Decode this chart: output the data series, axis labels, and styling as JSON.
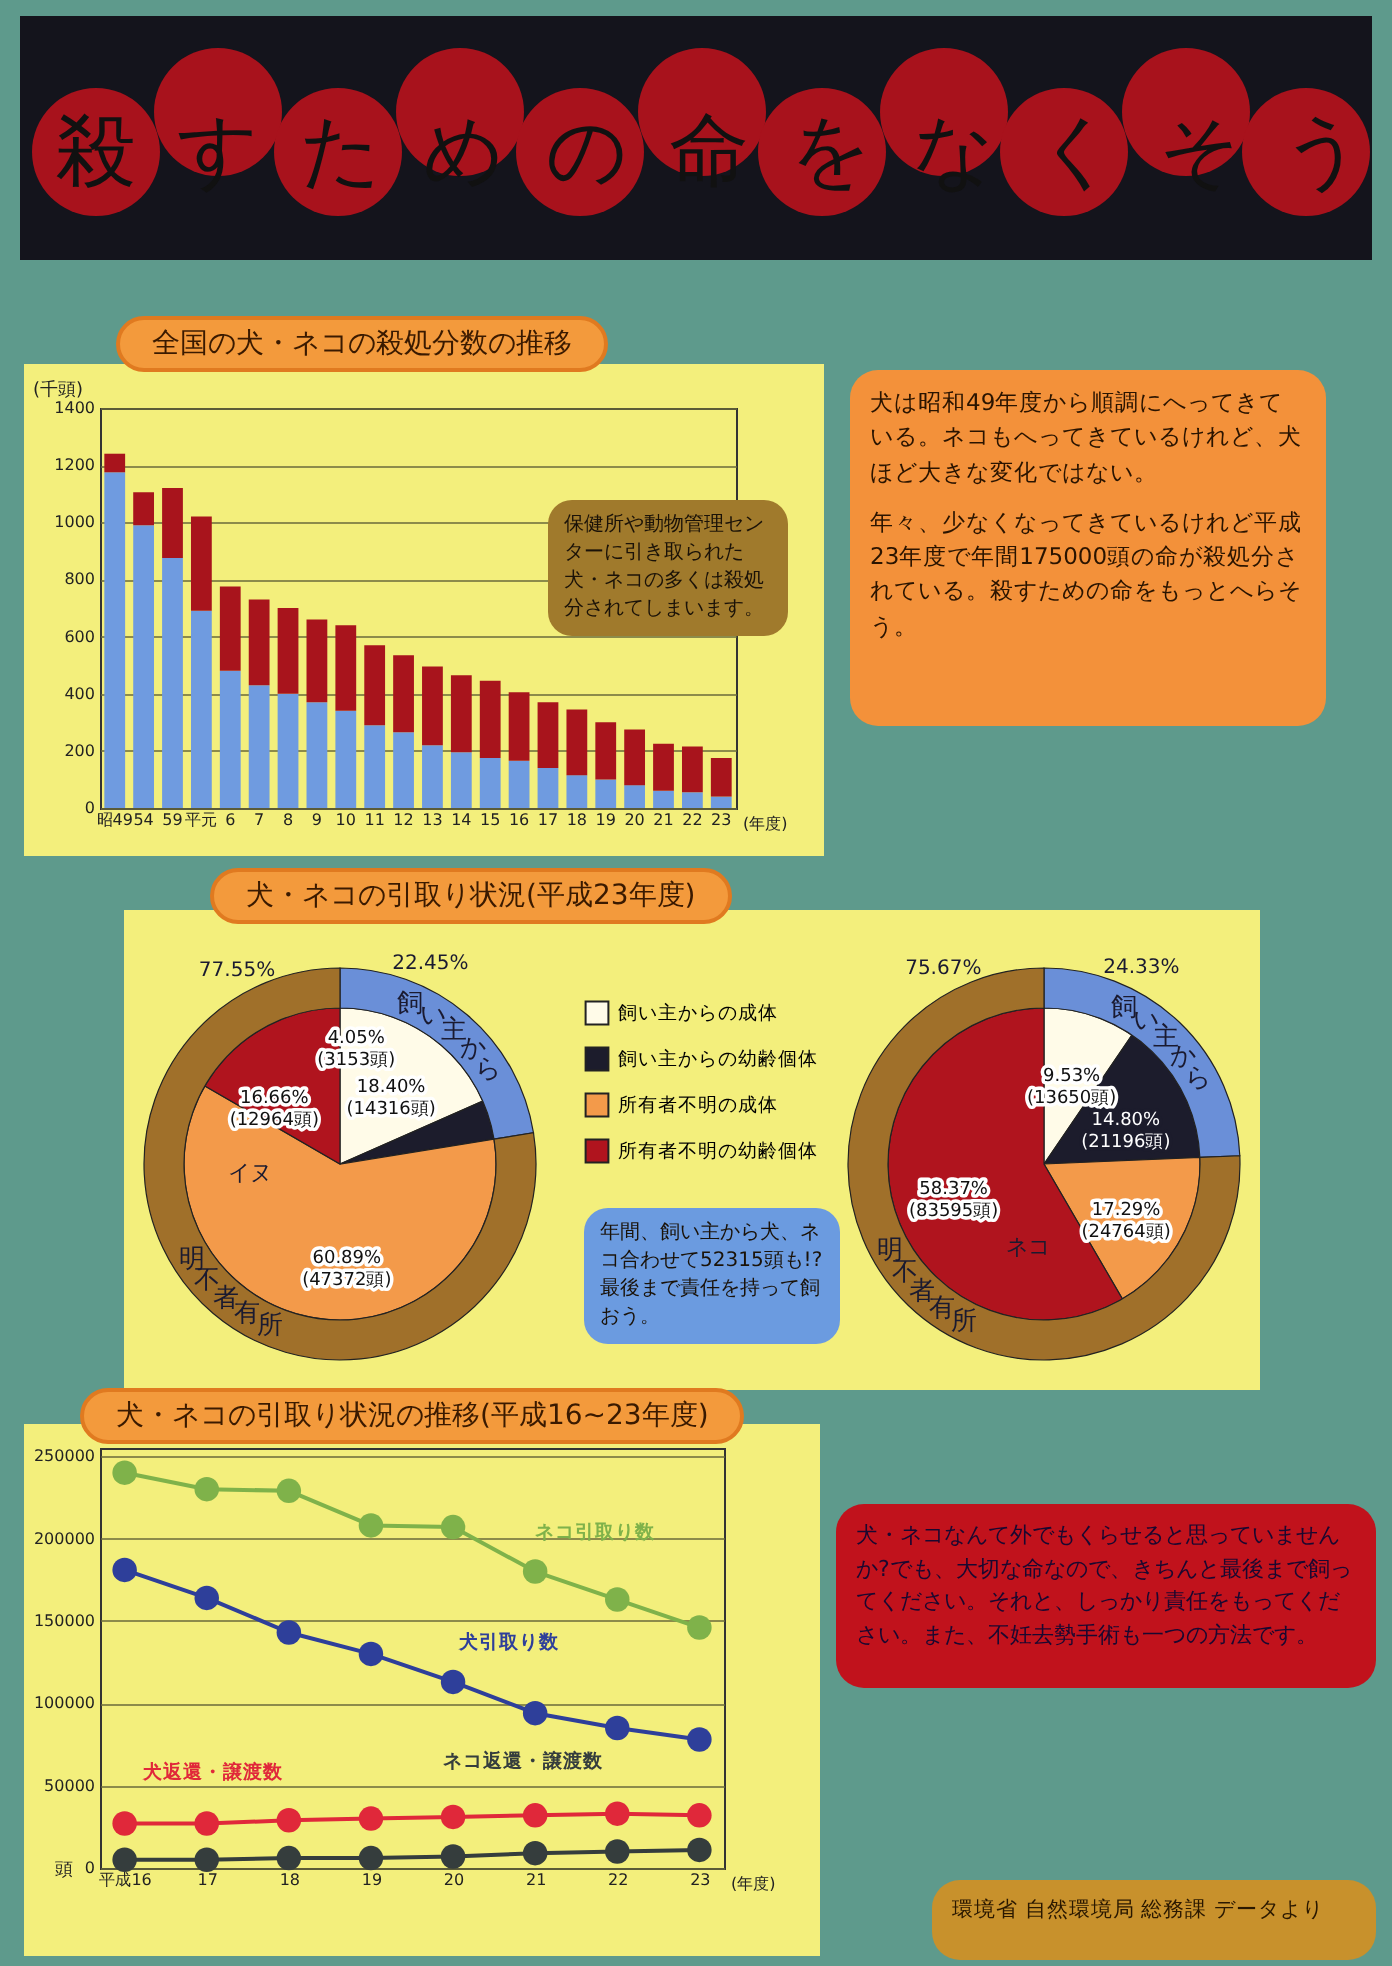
{
  "chart_data": [
    {
      "type": "other",
      "title": "殺すための命をなくそう"
    },
    {
      "type": "bar",
      "title": "全国の犬・ネコの殺処分数の推移",
      "xlabel": "(年度)",
      "ylabel": "(千頭)",
      "stacked": true,
      "grid": "y",
      "categories": [
        "昭49",
        "54",
        "59",
        "平元",
        "6",
        "7",
        "8",
        "9",
        "10",
        "11",
        "12",
        "13",
        "14",
        "15",
        "16",
        "17",
        "18",
        "19",
        "20",
        "21",
        "22",
        "23"
      ],
      "series": [
        {
          "color": "#6f9be0",
          "values": [
            1175,
            990,
            875,
            690,
            480,
            430,
            400,
            370,
            340,
            290,
            265,
            220,
            195,
            175,
            165,
            140,
            115,
            100,
            80,
            60,
            55,
            40
          ]
        },
        {
          "color": "#a8141c",
          "values": [
            65,
            115,
            245,
            330,
            295,
            300,
            300,
            290,
            300,
            280,
            270,
            275,
            270,
            270,
            240,
            230,
            230,
            200,
            195,
            165,
            160,
            135
          ]
        }
      ],
      "ylim": [
        0,
        1400
      ],
      "yticks": [
        0,
        200,
        400,
        600,
        800,
        1000,
        1200,
        1400
      ],
      "annotations": [
        "保健所や動物管理センターに引き取られた犬・ネコの多くは殺処分されてしまいます。"
      ]
    },
    {
      "type": "other",
      "annotations": [
        "犬は昭和49年度から順調にへってきている。ネコもへってきているけれど、犬ほど大きな変化ではない。",
        "年々、少なくなってきているけれど平成23年度で年間175000頭の命が殺処分されている。殺すための命をもっとへらそう。"
      ]
    },
    {
      "type": "pie",
      "title": "犬・ネコの引取り状況(平成23年度)",
      "legend": "right",
      "categories": [
        "飼い主からの成体",
        "飼い主からの幼齢個体",
        "所有者不明の成体",
        "所有者不明の幼齢個体"
      ],
      "values": [
        14316,
        3153,
        47372,
        12964
      ],
      "colors": [
        "#fffbe8",
        "#1c1c2c",
        "#f39a4a",
        "#b0141e"
      ],
      "value_labels": [
        "18.40%\n(14316頭)",
        "4.05%\n(3153頭)",
        "60.89%\n(47372頭)",
        "16.66%\n(12964頭)"
      ],
      "annotations": [
        "イヌ",
        "年間、飼い主から犬、ネコ合わせて52315頭も!? 最後まで責任を持って飼おう。"
      ]
    },
    {
      "type": "donut",
      "categories": [
        "飼い主から",
        "所有者不明"
      ],
      "values": [
        22.45,
        77.55
      ],
      "colors": [
        "#6a8fd8",
        "#a0702a"
      ],
      "value_labels": [
        "22.45%",
        "77.55%"
      ]
    },
    {
      "type": "pie",
      "categories": [
        null,
        null,
        null,
        null
      ],
      "values": [
        13650,
        21196,
        24764,
        83595
      ],
      "colors": [
        "#fffbe8",
        "#1c1c2c",
        "#f39a4a",
        "#b0141e"
      ],
      "value_labels": [
        "9.53%\n(13650頭)",
        "14.80%\n(21196頭)",
        "17.29%\n(24764頭)",
        "58.37%\n(83595頭)"
      ],
      "annotations": [
        "ネコ"
      ]
    },
    {
      "type": "donut",
      "categories": [
        "飼い主から",
        "所有者不明"
      ],
      "values": [
        24.33,
        75.67
      ],
      "colors": [
        "#6a8fd8",
        "#a0702a"
      ],
      "value_labels": [
        "24.33%",
        "75.67%"
      ]
    },
    {
      "type": "line",
      "title": "犬・ネコの引取り状況の推移(平成16~23年度)",
      "xlabel": "(年度)",
      "ylabel": "頭",
      "grid": "y",
      "marker": "circle",
      "categories": [
        "平成16",
        "17",
        "18",
        "19",
        "20",
        "21",
        "22",
        "23"
      ],
      "series": [
        {
          "name": "ネコ引取り数",
          "color": "#7fb24a",
          "values": [
            240000,
            230000,
            229000,
            208000,
            207000,
            180000,
            163000,
            146000
          ]
        },
        {
          "name": "犬引取り数",
          "color": "#2e3f9a",
          "values": [
            181000,
            164000,
            143000,
            130000,
            113000,
            94000,
            85000,
            78000
          ]
        },
        {
          "name": "犬返還・譲渡数",
          "color": "#e0283a",
          "values": [
            27000,
            27000,
            29000,
            30000,
            31000,
            32000,
            33000,
            32000
          ]
        },
        {
          "name": "ネコ返還・譲渡数",
          "color": "#353d3d",
          "values": [
            5000,
            5000,
            6000,
            6000,
            7000,
            9000,
            10000,
            11000
          ]
        }
      ],
      "ylim": [
        0,
        255000
      ],
      "yticks": [
        0,
        50000,
        100000,
        150000,
        200000,
        250000
      ]
    },
    {
      "type": "other",
      "annotations": [
        "犬・ネコなんて外でもくらせると思っていませんか?でも、大切な命なので、きちんと最後まで飼ってください。それと、しっかり責任をもってください。また、不妊去勢手術も一つの方法です。",
        "環境省 自然環境局 総務課 データより"
      ]
    }
  ]
}
